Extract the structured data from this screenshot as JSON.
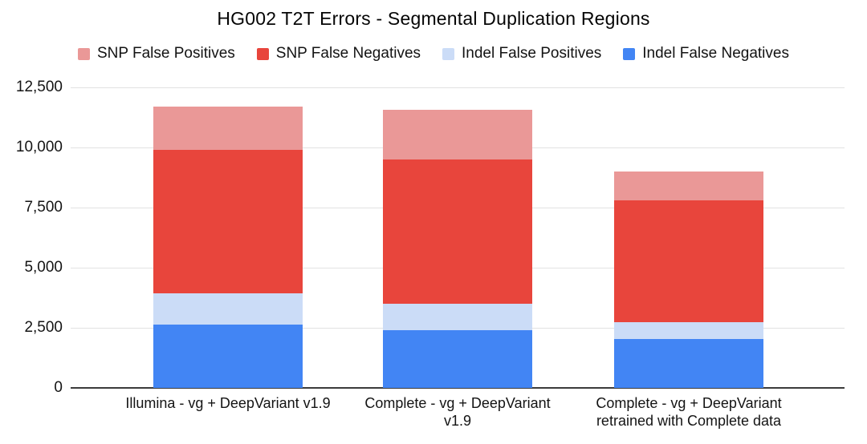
{
  "chart_data": {
    "type": "bar",
    "stacked": true,
    "title": "HG002 T2T Errors - Segmental Duplication Regions",
    "legend_position": "top",
    "grid": true,
    "background": "#ffffff",
    "categories": [
      {
        "lines": [
          "Illumina - vg + DeepVariant v1.9"
        ]
      },
      {
        "lines": [
          "Complete - vg + DeepVariant",
          "v1.9"
        ]
      },
      {
        "lines": [
          "Complete - vg + DeepVariant",
          "retrained with Complete data"
        ]
      }
    ],
    "series": [
      {
        "name": "Indel False Negatives",
        "color": "#4285f4",
        "values": [
          2650,
          2400,
          2050
        ]
      },
      {
        "name": "Indel False Positives",
        "color": "#cbdcf7",
        "values": [
          1300,
          1100,
          700
        ]
      },
      {
        "name": "SNP False Negatives",
        "color": "#e8453c",
        "values": [
          5950,
          6000,
          5050
        ]
      },
      {
        "name": "SNP False Positives",
        "color": "#ea9897",
        "values": [
          1800,
          2050,
          1200
        ]
      }
    ],
    "totals": [
      11700,
      11550,
      9000
    ],
    "legend": [
      {
        "label": "SNP False Positives",
        "color": "#ea9897"
      },
      {
        "label": "SNP False Negatives",
        "color": "#e8453c"
      },
      {
        "label": "Indel False Positives",
        "color": "#cbdcf7"
      },
      {
        "label": "Indel False Negatives",
        "color": "#4285f4"
      }
    ],
    "yaxis": {
      "min": 0,
      "max": 12500,
      "ticks": [
        {
          "value": 0,
          "label": "0"
        },
        {
          "value": 2500,
          "label": "2,500"
        },
        {
          "value": 5000,
          "label": "5,000"
        },
        {
          "value": 7500,
          "label": "7,500"
        },
        {
          "value": 10000,
          "label": "10,000"
        },
        {
          "value": 12500,
          "label": "12,500"
        }
      ]
    }
  }
}
